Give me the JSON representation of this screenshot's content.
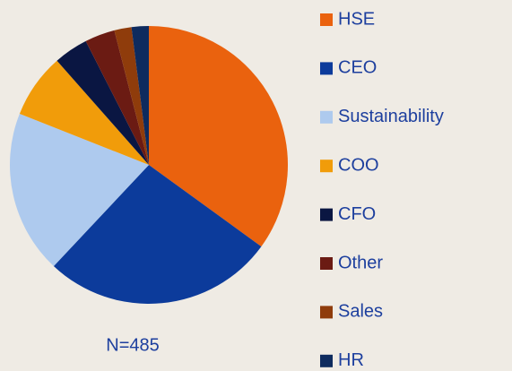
{
  "chart_data": {
    "type": "pie",
    "categories": [
      "HSE",
      "CEO",
      "Sustainability",
      "COO",
      "CFO",
      "Other",
      "Sales",
      "HR"
    ],
    "values": [
      35,
      27,
      19,
      7.5,
      4,
      3.5,
      2,
      2
    ],
    "colors": [
      "#ea620e",
      "#0c3b9b",
      "#aecaee",
      "#f19c0a",
      "#0a1642",
      "#6b1b13",
      "#8f3c0b",
      "#0e2b5e"
    ],
    "annotation": "N=485",
    "legend": "right"
  }
}
